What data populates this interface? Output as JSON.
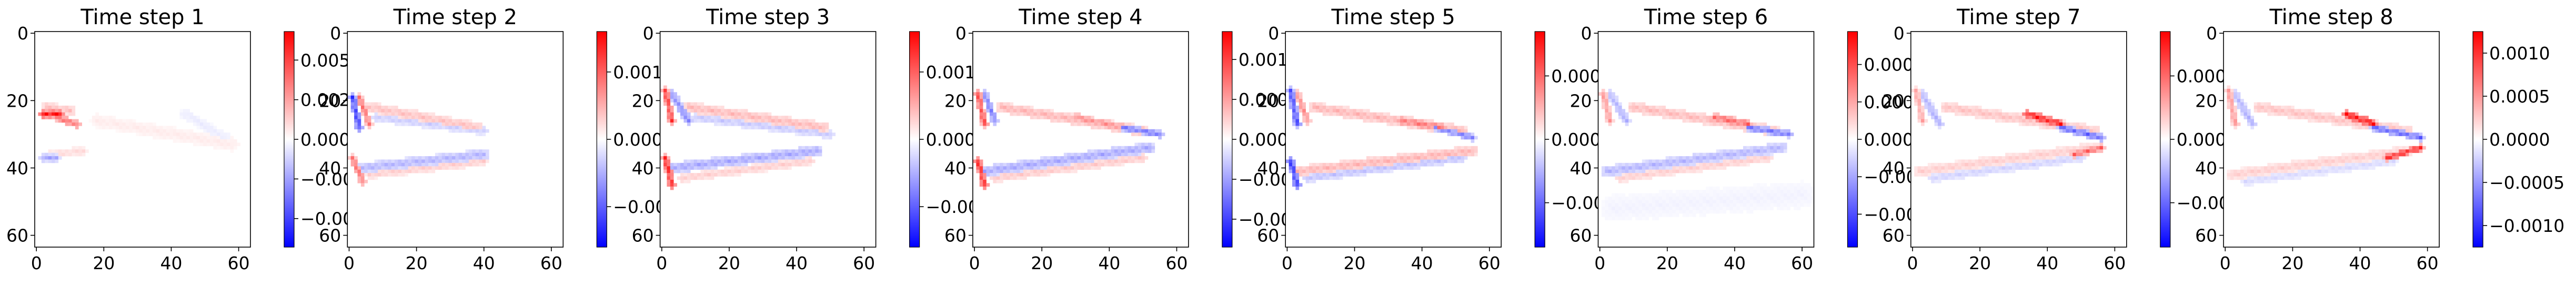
{
  "chart_data": [
    {
      "type": "heatmap",
      "title": "Time step 1",
      "xlabel": "",
      "ylabel": "",
      "xlim": [
        -0.5,
        63.5
      ],
      "ylim": [
        63.5,
        -0.5
      ],
      "x_ticks": [
        "0",
        "20",
        "40",
        "60"
      ],
      "y_ticks": [
        "0",
        "20",
        "40",
        "60"
      ],
      "colormap": "bwr",
      "colorbar": {
        "vmin": -0.0068,
        "vmax": 0.0068,
        "ticks": [
          {
            "value": 0.005,
            "label": "0.0050"
          },
          {
            "value": 0.0025,
            "label": "0.0025"
          },
          {
            "value": 0.0,
            "label": "0.0000"
          },
          {
            "value": -0.0025,
            "label": "−0.0025"
          },
          {
            "value": -0.005,
            "label": "−0.0050"
          }
        ]
      },
      "features": [
        {
          "kind": "strip",
          "x0": 2,
          "x1": 7,
          "y0": 24,
          "y1": 24,
          "value": 0.95,
          "width": 1.0
        },
        {
          "kind": "strip",
          "x0": 6,
          "x1": 12,
          "y0": 25,
          "y1": 27,
          "value": 0.55,
          "width": 1.2
        },
        {
          "kind": "strip",
          "x0": 3,
          "x1": 10,
          "y0": 22,
          "y1": 23,
          "value": 0.25,
          "width": 1.5
        },
        {
          "kind": "strip",
          "x0": 2,
          "x1": 6,
          "y0": 37,
          "y1": 37,
          "value": -0.35,
          "width": 1.0
        },
        {
          "kind": "strip",
          "x0": 4,
          "x1": 14,
          "y0": 36,
          "y1": 35,
          "value": 0.15,
          "width": 1.3
        },
        {
          "kind": "strip",
          "x0": 18,
          "x1": 58,
          "y0": 26,
          "y1": 33,
          "value": 0.08,
          "width": 2.0
        },
        {
          "kind": "strip",
          "x0": 44,
          "x1": 56,
          "y0": 24,
          "y1": 31,
          "value": -0.08,
          "width": 1.5
        }
      ]
    },
    {
      "type": "heatmap",
      "title": "Time step 2",
      "xlabel": "",
      "ylabel": "",
      "xlim": [
        -0.5,
        63.5
      ],
      "ylim": [
        63.5,
        -0.5
      ],
      "x_ticks": [
        "0",
        "20",
        "40",
        "60"
      ],
      "y_ticks": [
        "0",
        "20",
        "40",
        "60"
      ],
      "colormap": "bwr",
      "colorbar": {
        "vmin": -0.0016,
        "vmax": 0.0016,
        "ticks": [
          {
            "value": 0.001,
            "label": "0.001"
          },
          {
            "value": 0.0,
            "label": "0.000"
          },
          {
            "value": -0.001,
            "label": "−0.001"
          }
        ]
      },
      "features": [
        {
          "kind": "strip",
          "x0": 1,
          "x1": 3,
          "y0": 19,
          "y1": 28,
          "value": -0.75,
          "width": 1.0
        },
        {
          "kind": "strip",
          "x0": 3,
          "x1": 6,
          "y0": 19,
          "y1": 27,
          "value": 0.55,
          "width": 1.0
        },
        {
          "kind": "strip",
          "x0": 6,
          "x1": 38,
          "y0": 22,
          "y1": 28,
          "value": 0.25,
          "width": 1.6
        },
        {
          "kind": "strip",
          "x0": 8,
          "x1": 40,
          "y0": 25,
          "y1": 29,
          "value": -0.2,
          "width": 1.3
        },
        {
          "kind": "strip",
          "x0": 1,
          "x1": 4,
          "y0": 37,
          "y1": 44,
          "value": 0.55,
          "width": 1.0
        },
        {
          "kind": "strip",
          "x0": 4,
          "x1": 40,
          "y0": 40,
          "y1": 36,
          "value": -0.3,
          "width": 1.6
        },
        {
          "kind": "strip",
          "x0": 6,
          "x1": 40,
          "y0": 42,
          "y1": 38,
          "value": 0.2,
          "width": 1.3
        }
      ]
    },
    {
      "type": "heatmap",
      "title": "Time step 3",
      "xlabel": "",
      "ylabel": "",
      "xlim": [
        -0.5,
        63.5
      ],
      "ylim": [
        63.5,
        -0.5
      ],
      "x_ticks": [
        "0",
        "20",
        "40",
        "60"
      ],
      "y_ticks": [
        "0",
        "20",
        "40",
        "60"
      ],
      "colormap": "bwr",
      "colorbar": {
        "vmin": -0.0016,
        "vmax": 0.0016,
        "ticks": [
          {
            "value": 0.001,
            "label": "0.001"
          },
          {
            "value": 0.0,
            "label": "0.000"
          },
          {
            "value": -0.001,
            "label": "−0.001"
          }
        ]
      },
      "features": [
        {
          "kind": "strip",
          "x0": 1,
          "x1": 3,
          "y0": 17,
          "y1": 26,
          "value": 0.75,
          "width": 1.0
        },
        {
          "kind": "strip",
          "x0": 3,
          "x1": 8,
          "y0": 18,
          "y1": 26,
          "value": -0.45,
          "width": 1.2
        },
        {
          "kind": "strip",
          "x0": 8,
          "x1": 48,
          "y0": 22,
          "y1": 28,
          "value": 0.28,
          "width": 1.6
        },
        {
          "kind": "strip",
          "x0": 10,
          "x1": 50,
          "y0": 25,
          "y1": 30,
          "value": -0.22,
          "width": 1.3
        },
        {
          "kind": "strip",
          "x0": 1,
          "x1": 3,
          "y0": 37,
          "y1": 45,
          "value": 0.85,
          "width": 1.0
        },
        {
          "kind": "strip",
          "x0": 3,
          "x1": 46,
          "y0": 40,
          "y1": 35,
          "value": -0.35,
          "width": 1.6
        },
        {
          "kind": "strip",
          "x0": 6,
          "x1": 44,
          "y0": 43,
          "y1": 38,
          "value": 0.2,
          "width": 1.3
        }
      ]
    },
    {
      "type": "heatmap",
      "title": "Time step 4",
      "xlabel": "",
      "ylabel": "",
      "xlim": [
        -0.5,
        63.5
      ],
      "ylim": [
        63.5,
        -0.5
      ],
      "x_ticks": [
        "0",
        "20",
        "40",
        "60"
      ],
      "y_ticks": [
        "0",
        "20",
        "40",
        "60"
      ],
      "colormap": "bwr",
      "colorbar": {
        "vmin": -0.00135,
        "vmax": 0.00135,
        "ticks": [
          {
            "value": 0.001,
            "label": "0.0010"
          },
          {
            "value": 0.0005,
            "label": "0.0005"
          },
          {
            "value": 0.0,
            "label": "0.0000"
          },
          {
            "value": -0.0005,
            "label": "−0.0005"
          },
          {
            "value": -0.001,
            "label": "−0.0010"
          }
        ]
      },
      "features": [
        {
          "kind": "strip",
          "x0": 1,
          "x1": 3,
          "y0": 18,
          "y1": 27,
          "value": 0.7,
          "width": 1.0
        },
        {
          "kind": "strip",
          "x0": 3,
          "x1": 6,
          "y0": 18,
          "y1": 26,
          "value": -0.5,
          "width": 1.0
        },
        {
          "kind": "strip",
          "x0": 8,
          "x1": 50,
          "y0": 22,
          "y1": 29,
          "value": 0.3,
          "width": 1.6
        },
        {
          "kind": "strip",
          "x0": 30,
          "x1": 44,
          "y0": 25,
          "y1": 28,
          "value": 0.45,
          "width": 1.2
        },
        {
          "kind": "strip",
          "x0": 44,
          "x1": 55,
          "y0": 28,
          "y1": 30,
          "value": -0.55,
          "width": 1.0
        },
        {
          "kind": "strip",
          "x0": 1,
          "x1": 3,
          "y0": 38,
          "y1": 45,
          "value": 0.85,
          "width": 1.0
        },
        {
          "kind": "strip",
          "x0": 3,
          "x1": 52,
          "y0": 41,
          "y1": 34,
          "value": -0.35,
          "width": 1.6
        },
        {
          "kind": "strip",
          "x0": 6,
          "x1": 50,
          "y0": 43,
          "y1": 37,
          "value": 0.22,
          "width": 1.3
        }
      ]
    },
    {
      "type": "heatmap",
      "title": "Time step 5",
      "xlabel": "",
      "ylabel": "",
      "xlim": [
        -0.5,
        63.5
      ],
      "ylim": [
        63.5,
        -0.5
      ],
      "x_ticks": [
        "0",
        "20",
        "40",
        "60"
      ],
      "y_ticks": [
        "0",
        "20",
        "40",
        "60"
      ],
      "colormap": "bwr",
      "colorbar": {
        "vmin": -0.00085,
        "vmax": 0.00085,
        "ticks": [
          {
            "value": 0.0005,
            "label": "0.0005"
          },
          {
            "value": 0.0,
            "label": "0.0000"
          },
          {
            "value": -0.0005,
            "label": "−0.0005"
          }
        ]
      },
      "features": [
        {
          "kind": "strip",
          "x0": 1,
          "x1": 3,
          "y0": 17,
          "y1": 27,
          "value": -0.7,
          "width": 1.0
        },
        {
          "kind": "strip",
          "x0": 3,
          "x1": 6,
          "y0": 18,
          "y1": 26,
          "value": 0.45,
          "width": 1.0
        },
        {
          "kind": "strip",
          "x0": 8,
          "x1": 52,
          "y0": 22,
          "y1": 29,
          "value": 0.3,
          "width": 1.6
        },
        {
          "kind": "strip",
          "x0": 34,
          "x1": 46,
          "y0": 26,
          "y1": 28,
          "value": 0.55,
          "width": 1.2
        },
        {
          "kind": "strip",
          "x0": 44,
          "x1": 55,
          "y0": 28,
          "y1": 31,
          "value": -0.5,
          "width": 1.0
        },
        {
          "kind": "strip",
          "x0": 1,
          "x1": 3,
          "y0": 38,
          "y1": 45,
          "value": -0.8,
          "width": 1.0
        },
        {
          "kind": "strip",
          "x0": 3,
          "x1": 55,
          "y0": 41,
          "y1": 35,
          "value": 0.3,
          "width": 1.6
        },
        {
          "kind": "strip",
          "x0": 6,
          "x1": 52,
          "y0": 43,
          "y1": 37,
          "value": -0.25,
          "width": 1.3
        }
      ]
    },
    {
      "type": "heatmap",
      "title": "Time step 6",
      "xlabel": "",
      "ylabel": "",
      "xlim": [
        -0.5,
        63.5
      ],
      "ylim": [
        63.5,
        -0.5
      ],
      "x_ticks": [
        "0",
        "20",
        "40",
        "60"
      ],
      "y_ticks": [
        "0",
        "20",
        "40",
        "60"
      ],
      "colormap": "bwr",
      "colorbar": {
        "vmin": -0.00072,
        "vmax": 0.00072,
        "ticks": [
          {
            "value": 0.0005,
            "label": "0.00050"
          },
          {
            "value": 0.00025,
            "label": "0.00025"
          },
          {
            "value": 0.0,
            "label": "0.00000"
          },
          {
            "value": -0.00025,
            "label": "−0.00025"
          },
          {
            "value": -0.0005,
            "label": "−0.00050"
          }
        ]
      },
      "features": [
        {
          "kind": "strip",
          "x0": 1,
          "x1": 3,
          "y0": 18,
          "y1": 26,
          "value": 0.4,
          "width": 1.0
        },
        {
          "kind": "strip",
          "x0": 3,
          "x1": 8,
          "y0": 18,
          "y1": 26,
          "value": -0.3,
          "width": 1.2
        },
        {
          "kind": "strip",
          "x0": 10,
          "x1": 52,
          "y0": 22,
          "y1": 29,
          "value": 0.28,
          "width": 1.6
        },
        {
          "kind": "strip",
          "x0": 34,
          "x1": 44,
          "y0": 25,
          "y1": 27,
          "value": 0.6,
          "width": 1.2
        },
        {
          "kind": "strip",
          "x0": 44,
          "x1": 56,
          "y0": 28,
          "y1": 30,
          "value": -0.55,
          "width": 1.0
        },
        {
          "kind": "strip",
          "x0": 2,
          "x1": 54,
          "y0": 41,
          "y1": 34,
          "value": -0.3,
          "width": 1.6
        },
        {
          "kind": "strip",
          "x0": 6,
          "x1": 50,
          "y0": 43,
          "y1": 37,
          "value": 0.2,
          "width": 1.3
        },
        {
          "kind": "strip",
          "x0": 4,
          "x1": 60,
          "y0": 52,
          "y1": 48,
          "value": -0.05,
          "width": 4.0
        }
      ]
    },
    {
      "type": "heatmap",
      "title": "Time step 7",
      "xlabel": "",
      "ylabel": "",
      "xlim": [
        -0.5,
        63.5
      ],
      "ylim": [
        63.5,
        -0.5
      ],
      "x_ticks": [
        "0",
        "20",
        "40",
        "60"
      ],
      "y_ticks": [
        "0",
        "20",
        "40",
        "60"
      ],
      "colormap": "bwr",
      "colorbar": {
        "vmin": -0.00085,
        "vmax": 0.00085,
        "ticks": [
          {
            "value": 0.0005,
            "label": "0.0005"
          },
          {
            "value": 0.0,
            "label": "0.0000"
          },
          {
            "value": -0.0005,
            "label": "−0.0005"
          }
        ]
      },
      "features": [
        {
          "kind": "strip",
          "x0": 1,
          "x1": 3,
          "y0": 17,
          "y1": 26,
          "value": 0.35,
          "width": 1.0
        },
        {
          "kind": "strip",
          "x0": 3,
          "x1": 8,
          "y0": 18,
          "y1": 27,
          "value": -0.3,
          "width": 1.2
        },
        {
          "kind": "strip",
          "x0": 10,
          "x1": 54,
          "y0": 22,
          "y1": 29,
          "value": 0.25,
          "width": 1.6
        },
        {
          "kind": "strip",
          "x0": 34,
          "x1": 44,
          "y0": 24,
          "y1": 27,
          "value": 0.9,
          "width": 1.2
        },
        {
          "kind": "strip",
          "x0": 44,
          "x1": 56,
          "y0": 28,
          "y1": 31,
          "value": -0.6,
          "width": 1.0
        },
        {
          "kind": "strip",
          "x0": 48,
          "x1": 56,
          "y0": 36,
          "y1": 34,
          "value": 0.6,
          "width": 1.0
        },
        {
          "kind": "strip",
          "x0": 2,
          "x1": 54,
          "y0": 41,
          "y1": 34,
          "value": 0.2,
          "width": 1.6
        },
        {
          "kind": "strip",
          "x0": 6,
          "x1": 50,
          "y0": 43,
          "y1": 37,
          "value": -0.18,
          "width": 1.3
        }
      ]
    },
    {
      "type": "heatmap",
      "title": "Time step 8",
      "xlabel": "",
      "ylabel": "",
      "xlim": [
        -0.5,
        63.5
      ],
      "ylim": [
        63.5,
        -0.5
      ],
      "x_ticks": [
        "0",
        "20",
        "40",
        "60"
      ],
      "y_ticks": [
        "0",
        "20",
        "40",
        "60"
      ],
      "colormap": "bwr",
      "colorbar": {
        "vmin": -0.00125,
        "vmax": 0.00125,
        "ticks": [
          {
            "value": 0.001,
            "label": "0.0010"
          },
          {
            "value": 0.0005,
            "label": "0.0005"
          },
          {
            "value": 0.0,
            "label": "0.0000"
          },
          {
            "value": -0.0005,
            "label": "−0.0005"
          },
          {
            "value": -0.001,
            "label": "−0.0010"
          }
        ]
      },
      "features": [
        {
          "kind": "strip",
          "x0": 1,
          "x1": 3,
          "y0": 17,
          "y1": 27,
          "value": 0.4,
          "width": 1.0
        },
        {
          "kind": "strip",
          "x0": 3,
          "x1": 8,
          "y0": 18,
          "y1": 27,
          "value": -0.3,
          "width": 1.2
        },
        {
          "kind": "strip",
          "x0": 10,
          "x1": 54,
          "y0": 22,
          "y1": 29,
          "value": 0.25,
          "width": 1.6
        },
        {
          "kind": "strip",
          "x0": 36,
          "x1": 44,
          "y0": 24,
          "y1": 27,
          "value": 0.95,
          "width": 1.2
        },
        {
          "kind": "strip",
          "x0": 44,
          "x1": 58,
          "y0": 28,
          "y1": 31,
          "value": -0.6,
          "width": 1.0
        },
        {
          "kind": "strip",
          "x0": 48,
          "x1": 58,
          "y0": 37,
          "y1": 34,
          "value": 0.85,
          "width": 1.0
        },
        {
          "kind": "strip",
          "x0": 2,
          "x1": 54,
          "y0": 42,
          "y1": 35,
          "value": 0.2,
          "width": 1.6
        },
        {
          "kind": "strip",
          "x0": 6,
          "x1": 50,
          "y0": 44,
          "y1": 38,
          "value": -0.15,
          "width": 1.3
        }
      ]
    }
  ]
}
